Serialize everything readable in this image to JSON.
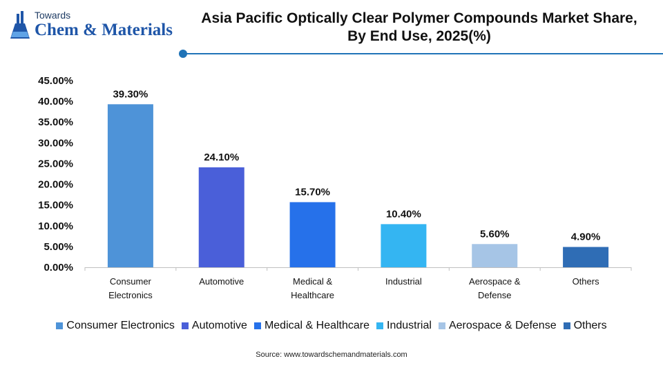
{
  "logo": {
    "line1": "Towards",
    "line2": "Chem & Materials"
  },
  "chart_data": {
    "type": "bar",
    "title_line1": "Asia Pacific Optically Clear Polymer Compounds Market Share,",
    "title_line2": "By End Use, 2025(%)",
    "categories": [
      "Consumer Electronics",
      "Automotive",
      "Medical & Healthcare",
      "Industrial",
      "Aerospace & Defense",
      "Others"
    ],
    "category_labels": [
      [
        "Consumer",
        "Electronics"
      ],
      [
        "Automotive"
      ],
      [
        "Medical &",
        "Healthcare"
      ],
      [
        "Industrial"
      ],
      [
        "Aerospace &",
        "Defense"
      ],
      [
        "Others"
      ]
    ],
    "values": [
      39.3,
      24.1,
      15.7,
      10.4,
      5.6,
      4.9
    ],
    "data_labels": [
      "39.30%",
      "24.10%",
      "15.70%",
      "10.40%",
      "5.60%",
      "4.90%"
    ],
    "colors": [
      "#4e93d8",
      "#4a5fd9",
      "#2671ea",
      "#34b5f2",
      "#a6c5e6",
      "#2f6db5"
    ],
    "ylim": [
      0,
      45
    ],
    "yticks": [
      "0.00%",
      "5.00%",
      "10.00%",
      "15.00%",
      "20.00%",
      "25.00%",
      "30.00%",
      "35.00%",
      "40.00%",
      "45.00%"
    ],
    "xlabel": "",
    "ylabel": "",
    "grid": false,
    "legend_position": "bottom"
  },
  "source": "Source: www.towardschemandmaterials.com"
}
